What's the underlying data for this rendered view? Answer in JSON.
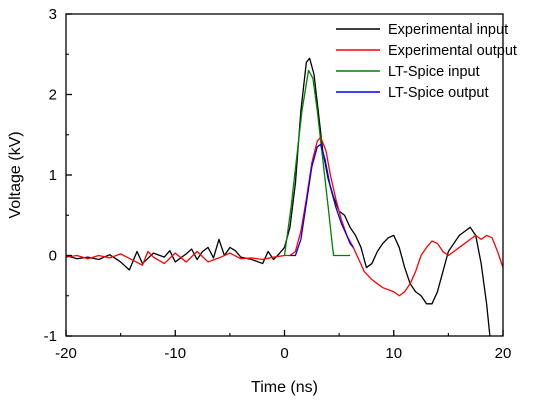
{
  "chart_data": {
    "type": "line",
    "title": "",
    "xlabel": "Time (ns)",
    "ylabel": "Voltage (kV)",
    "xlim": [
      -20,
      20
    ],
    "ylim": [
      -1,
      3
    ],
    "x_ticks": [
      -20,
      -10,
      0,
      10,
      20
    ],
    "y_ticks": [
      -1,
      0,
      1,
      2,
      3
    ],
    "x_tick_labels": [
      "-20",
      "-10",
      "0",
      "10",
      "20"
    ],
    "y_tick_labels": [
      "-1",
      "0",
      "1",
      "2",
      "3"
    ],
    "grid": false,
    "legend_position": "top-right",
    "series": [
      {
        "name": "Experimental input",
        "color": "#000000",
        "points": [
          [
            -20,
            0.0
          ],
          [
            -19,
            -0.04
          ],
          [
            -18,
            -0.02
          ],
          [
            -17,
            -0.05
          ],
          [
            -16,
            0.01
          ],
          [
            -15,
            -0.08
          ],
          [
            -14.2,
            -0.18
          ],
          [
            -13.5,
            0.05
          ],
          [
            -13,
            -0.1
          ],
          [
            -12,
            0.03
          ],
          [
            -11,
            -0.02
          ],
          [
            -10.5,
            0.06
          ],
          [
            -10,
            -0.08
          ],
          [
            -9,
            0.02
          ],
          [
            -8.5,
            0.08
          ],
          [
            -8,
            -0.05
          ],
          [
            -7.5,
            0.05
          ],
          [
            -7,
            0.1
          ],
          [
            -6.5,
            -0.03
          ],
          [
            -6,
            0.2
          ],
          [
            -5.5,
            0.0
          ],
          [
            -5,
            0.1
          ],
          [
            -4.5,
            0.06
          ],
          [
            -4,
            -0.02
          ],
          [
            -3,
            -0.05
          ],
          [
            -2,
            -0.1
          ],
          [
            -1.5,
            0.05
          ],
          [
            -1,
            -0.05
          ],
          [
            -0.5,
            0.02
          ],
          [
            0,
            0.1
          ],
          [
            0.5,
            0.35
          ],
          [
            1,
            0.9
          ],
          [
            1.5,
            1.8
          ],
          [
            2,
            2.4
          ],
          [
            2.3,
            2.45
          ],
          [
            2.7,
            2.25
          ],
          [
            3,
            1.9
          ],
          [
            3.5,
            1.3
          ],
          [
            4,
            0.95
          ],
          [
            4.5,
            0.72
          ],
          [
            5,
            0.55
          ],
          [
            5.5,
            0.5
          ],
          [
            6,
            0.35
          ],
          [
            6.5,
            0.25
          ],
          [
            7,
            0.1
          ],
          [
            7.5,
            -0.15
          ],
          [
            8,
            -0.1
          ],
          [
            8.5,
            0.05
          ],
          [
            9,
            0.15
          ],
          [
            9.5,
            0.22
          ],
          [
            10,
            0.25
          ],
          [
            10.5,
            0.1
          ],
          [
            11,
            -0.15
          ],
          [
            11.5,
            -0.35
          ],
          [
            12,
            -0.45
          ],
          [
            12.5,
            -0.5
          ],
          [
            13,
            -0.6
          ],
          [
            13.5,
            -0.6
          ],
          [
            14,
            -0.45
          ],
          [
            14.5,
            -0.2
          ],
          [
            15,
            0.05
          ],
          [
            15.5,
            0.15
          ],
          [
            16,
            0.25
          ],
          [
            16.5,
            0.3
          ],
          [
            17,
            0.35
          ],
          [
            17.5,
            0.25
          ],
          [
            18,
            -0.1
          ],
          [
            18.5,
            -0.6
          ],
          [
            18.8,
            -1.0
          ]
        ]
      },
      {
        "name": "Experimental output",
        "color": "#ff0000",
        "points": [
          [
            -20,
            -0.02
          ],
          [
            -19,
            0.0
          ],
          [
            -18,
            -0.04
          ],
          [
            -17,
            0.0
          ],
          [
            -16,
            -0.03
          ],
          [
            -15,
            0.02
          ],
          [
            -14,
            -0.05
          ],
          [
            -13,
            -0.12
          ],
          [
            -12.5,
            0.05
          ],
          [
            -12,
            -0.02
          ],
          [
            -11,
            -0.1
          ],
          [
            -10,
            0.03
          ],
          [
            -9,
            -0.08
          ],
          [
            -8,
            0.05
          ],
          [
            -7,
            -0.08
          ],
          [
            -6,
            -0.03
          ],
          [
            -5,
            0.03
          ],
          [
            -4,
            -0.04
          ],
          [
            -3,
            -0.03
          ],
          [
            -2,
            -0.05
          ],
          [
            -1,
            -0.02
          ],
          [
            0,
            0.0
          ],
          [
            0.5,
            0.0
          ],
          [
            1,
            0.05
          ],
          [
            1.5,
            0.3
          ],
          [
            2,
            0.7
          ],
          [
            2.5,
            1.15
          ],
          [
            3,
            1.42
          ],
          [
            3.3,
            1.47
          ],
          [
            3.8,
            1.3
          ],
          [
            4.2,
            1.0
          ],
          [
            4.7,
            0.7
          ],
          [
            5.2,
            0.45
          ],
          [
            5.7,
            0.25
          ],
          [
            6.3,
            0.1
          ],
          [
            6.8,
            -0.05
          ],
          [
            7.3,
            -0.2
          ],
          [
            8,
            -0.3
          ],
          [
            8.5,
            -0.35
          ],
          [
            9,
            -0.4
          ],
          [
            10,
            -0.45
          ],
          [
            10.5,
            -0.5
          ],
          [
            11,
            -0.45
          ],
          [
            11.5,
            -0.35
          ],
          [
            12,
            -0.2
          ],
          [
            12.5,
            0.0
          ],
          [
            13,
            0.1
          ],
          [
            13.5,
            0.18
          ],
          [
            14,
            0.15
          ],
          [
            14.5,
            0.05
          ],
          [
            15,
            0.0
          ],
          [
            15.5,
            0.05
          ],
          [
            16,
            0.1
          ],
          [
            16.5,
            0.15
          ],
          [
            17,
            0.2
          ],
          [
            17.5,
            0.25
          ],
          [
            18,
            0.2
          ],
          [
            18.5,
            0.25
          ],
          [
            19,
            0.22
          ],
          [
            19.5,
            0.05
          ],
          [
            20,
            -0.15
          ]
        ]
      },
      {
        "name": "LT-Spice input",
        "color": "#008000",
        "points": [
          [
            0,
            0.0
          ],
          [
            0.1,
            0.1
          ],
          [
            0.6,
            0.6
          ],
          [
            1.1,
            1.2
          ],
          [
            1.6,
            1.8
          ],
          [
            2.2,
            2.3
          ],
          [
            2.6,
            2.2
          ],
          [
            3,
            1.8
          ],
          [
            3.5,
            1.2
          ],
          [
            4,
            0.6
          ],
          [
            4.4,
            0.1
          ],
          [
            4.5,
            0.0
          ],
          [
            6,
            0.0
          ]
        ]
      },
      {
        "name": "LT-Spice output",
        "color": "#0000ff",
        "points": [
          [
            0.5,
            0.0
          ],
          [
            1,
            0.0
          ],
          [
            1.5,
            0.2
          ],
          [
            2,
            0.65
          ],
          [
            2.5,
            1.1
          ],
          [
            3,
            1.35
          ],
          [
            3.3,
            1.38
          ],
          [
            3.7,
            1.2
          ],
          [
            4.2,
            0.85
          ],
          [
            4.7,
            0.6
          ],
          [
            5.2,
            0.4
          ],
          [
            5.7,
            0.25
          ],
          [
            6,
            0.15
          ],
          [
            6.3,
            0.1
          ]
        ]
      }
    ]
  }
}
